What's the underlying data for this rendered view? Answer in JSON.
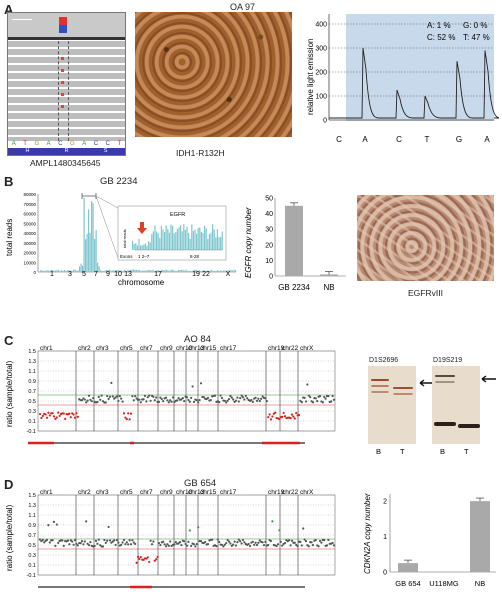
{
  "panel_a": {
    "letter": "A",
    "igv_label": "AMPL1480345645",
    "bases": [
      "A",
      "T",
      "G",
      "A",
      "C",
      "G",
      "A",
      "C",
      "C",
      "T"
    ],
    "aa": [
      "H",
      "R",
      "S"
    ],
    "histo_title": "OA 97",
    "histo_caption": "IDH1-R132H",
    "pyro": {
      "ylabel": "relative light emission",
      "yticks": [
        "400",
        "300",
        "200",
        "100",
        "0"
      ],
      "xticks": [
        "C",
        "A",
        "C",
        "T",
        "G",
        "A"
      ],
      "annot": [
        "A: 1 %",
        "G: 0 %",
        "C: 52 %",
        "T: 47 %"
      ]
    }
  },
  "panel_b": {
    "letter": "B",
    "title": "GB 2234",
    "ylabel": "total reads",
    "yticks": [
      "80000",
      "70000",
      "60000",
      "50000",
      "40000",
      "30000",
      "20000",
      "10000",
      "0"
    ],
    "xticks": [
      "1",
      "3",
      "5",
      "7",
      "9",
      "10",
      "13",
      "17",
      "19",
      "22",
      "X"
    ],
    "xlabel": "chromosome",
    "inset": {
      "title": "EGFR",
      "ylabel": "total reads",
      "xlabel": "Exons",
      "ex1": "1  2–7",
      "ex2": "8-28"
    },
    "bar_ylabel": "EGFR copy number",
    "bar_caption": "EGFRvIII",
    "chart_data": {
      "type": "bar",
      "categories": [
        "GB 2234",
        "NB"
      ],
      "values": [
        45,
        1
      ],
      "ylim": [
        0,
        50
      ],
      "yticks": [
        "50",
        "40",
        "30",
        "20",
        "10",
        "0"
      ]
    }
  },
  "panel_c": {
    "letter": "C",
    "title": "AO 84",
    "ylabel": "ratio (sample/total)",
    "yticks": [
      "1.5",
      "1.3",
      "1.1",
      "0.9",
      "0.7",
      "0.5",
      "0.3",
      "0.1",
      "-0.1"
    ],
    "chroms": [
      "chr1",
      "chr2",
      "chr3",
      "chr5",
      "chr7",
      "chr9",
      "chr10",
      "chr13",
      "chr15",
      "chr17",
      "chr19",
      "chr22",
      "chrX"
    ],
    "gel": {
      "label1": "D1S2696",
      "label2": "D19S219",
      "lanes": [
        "B",
        "T",
        "B",
        "T"
      ]
    }
  },
  "panel_d": {
    "letter": "D",
    "title": "GB 654",
    "ylabel": "ratio (sample/total)",
    "yticks": [
      "1.5",
      "1.3",
      "1.1",
      "0.9",
      "0.7",
      "0.5",
      "0.3",
      "0.1",
      "-0.1"
    ],
    "chroms": [
      "chr1",
      "chr2",
      "chr3",
      "chr5",
      "chr7",
      "chr9",
      "chr10",
      "chr13",
      "chr15",
      "chr17",
      "chr19",
      "chr22",
      "chrX"
    ],
    "bar_ylabel": "CDKN2A copy number",
    "chart_data": {
      "type": "bar",
      "categories": [
        "GB 654",
        "U118MG",
        "NB"
      ],
      "values": [
        0.25,
        0.0,
        2.0
      ],
      "ylim": [
        0,
        2.2
      ],
      "yticks": [
        "2",
        "1",
        "0"
      ]
    }
  }
}
